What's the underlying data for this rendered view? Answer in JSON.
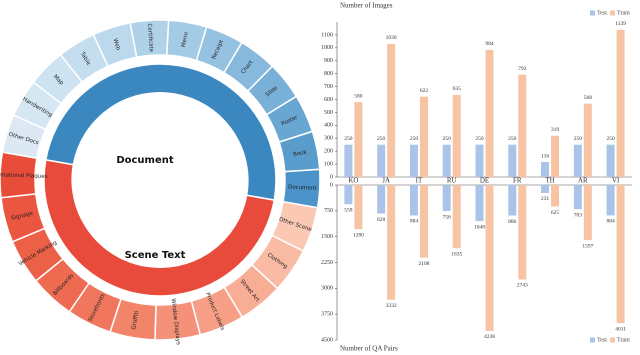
{
  "chart_data": [
    {
      "type": "sunburst",
      "children": [
        {
          "label": "Document",
          "color": "#3b88c0",
          "children": [
            {
              "label": "Document",
              "color": "#4b93c8"
            },
            {
              "label": "Book",
              "color": "#5a9dcd"
            },
            {
              "label": "Poster",
              "color": "#69a6d2"
            },
            {
              "label": "Slide",
              "color": "#78b0d7"
            },
            {
              "label": "Chart",
              "color": "#87b9dc"
            },
            {
              "label": "Receipt",
              "color": "#96c2e1"
            },
            {
              "label": "Menu",
              "color": "#a4cbe5"
            },
            {
              "label": "Certificate",
              "color": "#b0d2e9"
            },
            {
              "label": "Web",
              "color": "#bbd8ec"
            },
            {
              "label": "Table",
              "color": "#c4ddef"
            },
            {
              "label": "Map",
              "color": "#cde3f1"
            },
            {
              "label": "Handwriting",
              "color": "#d5e7f3"
            },
            {
              "label": "Other Docs",
              "color": "#dce9f5"
            }
          ]
        },
        {
          "label": "Scene Text",
          "color": "#e84a3b",
          "children": [
            {
              "label": "Other Scene",
              "color": "#fbc9b3"
            },
            {
              "label": "Clothing",
              "color": "#f9bba4"
            },
            {
              "label": "Street Art",
              "color": "#f8ad95"
            },
            {
              "label": "Product Labels",
              "color": "#f69f86"
            },
            {
              "label": "Window Displays",
              "color": "#f49178"
            },
            {
              "label": "Graffiti",
              "color": "#f2846a"
            },
            {
              "label": "Storefronts",
              "color": "#f0775d"
            },
            {
              "label": "Billboards",
              "color": "#ee6b52"
            },
            {
              "label": "Vehicle Marking",
              "color": "#ec6048"
            },
            {
              "label": "Signage",
              "color": "#ea5640"
            },
            {
              "label": "Informational Plaques",
              "color": "#e84d3a"
            }
          ]
        }
      ]
    },
    {
      "type": "mirrored_bar",
      "categories": [
        "KO",
        "JA",
        "IT",
        "RU",
        "DE",
        "FR",
        "TH",
        "AR",
        "VI"
      ],
      "top": {
        "ylabel": "Number of Images",
        "ylim": [
          0,
          1200
        ],
        "yticks": [
          0,
          100,
          200,
          300,
          400,
          500,
          600,
          700,
          800,
          900,
          1000,
          1100
        ],
        "series": [
          {
            "name": "Test",
            "color": "#a9c4e8",
            "values": [
              250,
              250,
              250,
              250,
              250,
              250,
              116,
              250,
              250
            ]
          },
          {
            "name": "Train",
            "color": "#f7c4a3",
            "values": [
              580,
              1030,
              622,
              635,
              984,
              792,
              319,
              568,
              1139
            ]
          }
        ]
      },
      "bottom": {
        "ylabel": "Number of QA Pairs",
        "ylim": [
          0,
          4500
        ],
        "yticks": [
          0,
          750,
          1500,
          2250,
          3000,
          3750,
          4500
        ],
        "series": [
          {
            "name": "Test",
            "color": "#a9c4e8",
            "values": [
              558,
              828,
              884,
              756,
              1048,
              886,
              231,
              703,
              884
            ]
          },
          {
            "name": "Train",
            "color": "#f7c4a3",
            "values": [
              1280,
              3332,
              2108,
              1835,
              4238,
              2743,
              625,
              1597,
              4011
            ]
          }
        ]
      }
    }
  ]
}
